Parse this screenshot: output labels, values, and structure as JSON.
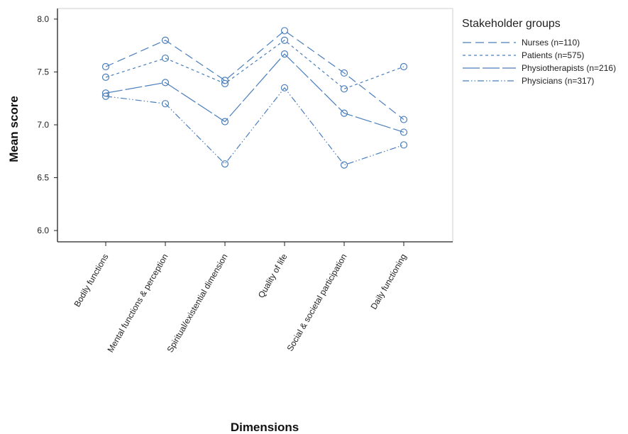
{
  "chart_data": {
    "type": "line",
    "xlabel": "Dimensions",
    "ylabel": "Mean score",
    "ylim": [
      5.9,
      8.1
    ],
    "yticks": [
      "6.0",
      "6.5",
      "7.0",
      "7.5",
      "8.0"
    ],
    "categories": [
      "Bodily functions",
      "Mental functions & perception",
      "Spiritual/existential dimension",
      "Quality of life",
      "Social & societal participation",
      "Daily functioning"
    ],
    "legend_title": "Stakeholder groups",
    "legend_position": "right",
    "line_color": "#4a7ebb",
    "series": [
      {
        "name": "Nurses (n=110)",
        "style": "long-dash",
        "values": [
          7.55,
          7.8,
          7.42,
          7.89,
          7.49,
          7.05
        ]
      },
      {
        "name": "Patients (n=575)",
        "style": "short-dash",
        "values": [
          7.45,
          7.63,
          7.39,
          7.8,
          7.34,
          7.55
        ]
      },
      {
        "name": "Physiotherapists (n=216)",
        "style": "very-long-dash",
        "values": [
          7.3,
          7.4,
          7.03,
          7.67,
          7.11,
          6.93
        ]
      },
      {
        "name": "Physicians (n=317)",
        "style": "dash-dot-dot",
        "values": [
          7.27,
          7.2,
          6.63,
          7.35,
          6.62,
          6.81
        ]
      }
    ]
  }
}
